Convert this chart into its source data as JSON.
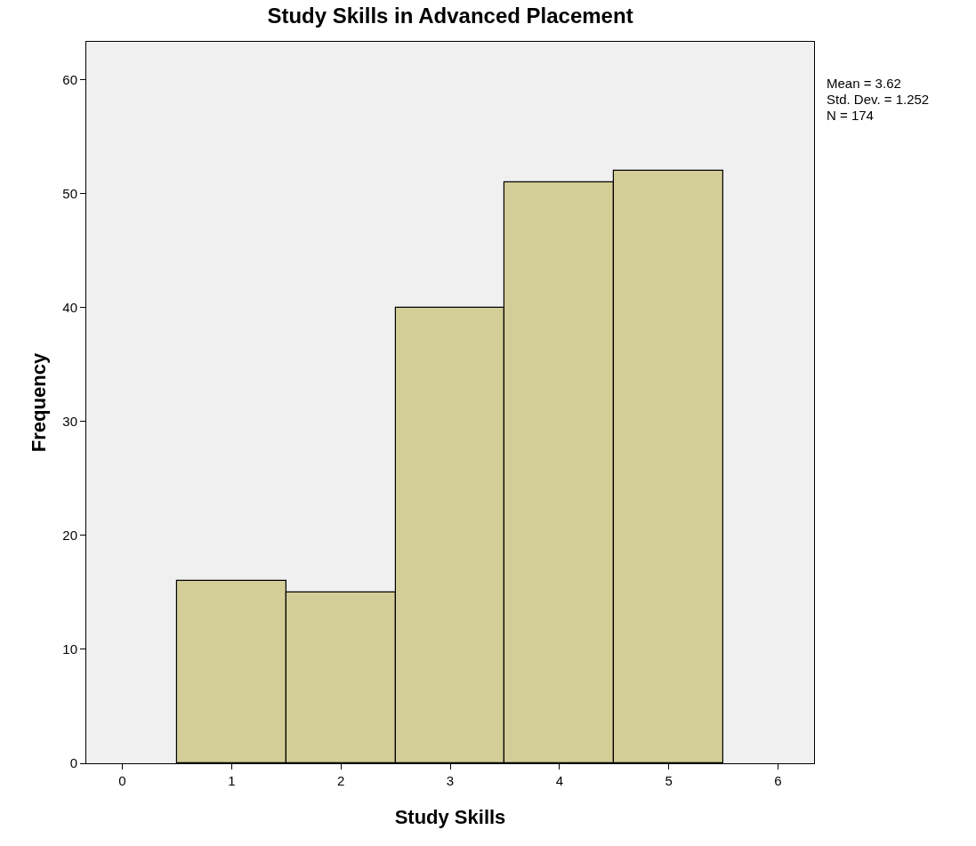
{
  "chart_data": {
    "type": "histogram",
    "title": "Study Skills in Advanced Placement",
    "xlabel": "Study Skills",
    "ylabel": "Frequency",
    "bins": [
      0.5,
      1.5,
      2.5,
      3.5,
      4.5,
      5.5
    ],
    "values": [
      16,
      15,
      40,
      51,
      52
    ],
    "color": "#d3ce98",
    "xlim": [
      -0.33,
      6.33
    ],
    "xticks": [
      0,
      1,
      2,
      3,
      4,
      5,
      6
    ],
    "ylim": [
      0,
      63.3
    ],
    "yticks": [
      0,
      10,
      20,
      30,
      40,
      50,
      60
    ],
    "grid": false,
    "annotations": [
      "Mean = 3.62",
      "Std. Dev. = 1.252",
      "N = 174"
    ]
  }
}
